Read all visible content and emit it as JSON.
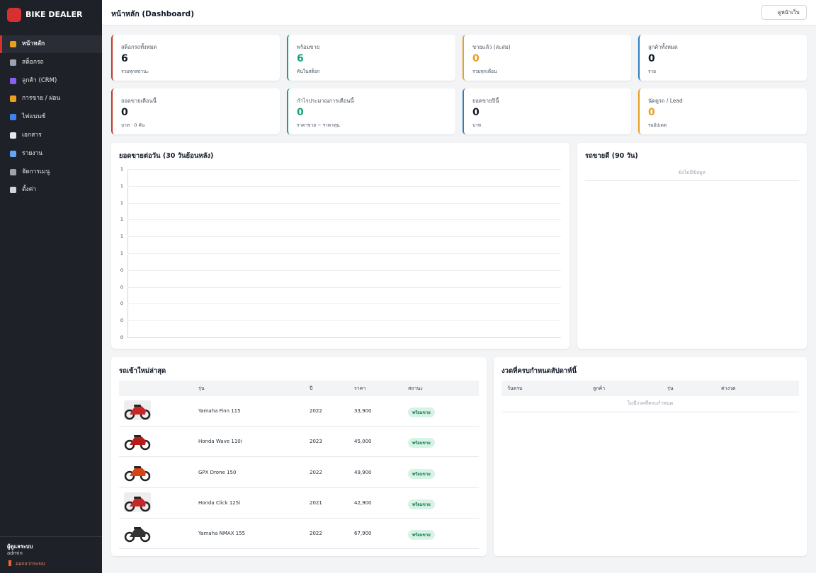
{
  "sidebar": {
    "brand": "BIKE DEALER",
    "nav": [
      "หน้าหลัก",
      "สต็อกรถ",
      "ลูกค้า (CRM)",
      "การขาย / ผ่อน",
      "ไฟแนนซ์",
      "เอกสาร",
      "รายงาน",
      "จัดการเมนู",
      "ตั้งค่า"
    ],
    "active": 0,
    "user": {
      "role": "ผู้ดูแลระบบ",
      "name": "admin",
      "logout": "ออกจากระบบ"
    }
  },
  "header": {
    "title": "หน้าหลัก (Dashboard)",
    "button": "ดูหน้าเว็บ"
  },
  "stats": [
    {
      "label": "สต็อกรถทั้งหมด",
      "value": 6,
      "note": "รวมทุกสถานะ",
      "color": "#c0392b",
      "value_colored": false
    },
    {
      "label": "พร้อมขาย",
      "value": 6,
      "note": "คันในสต็อก",
      "color": "#16a37a",
      "value_colored": true
    },
    {
      "label": "ขายแล้ว (สะสม)",
      "value": 0,
      "note": "รวมทุกเดือน",
      "color": "#e8a020",
      "value_colored": true
    },
    {
      "label": "ลูกค้าทั้งหมด",
      "value": 0,
      "note": "ราย",
      "color": "#2d7fc1",
      "value_colored": false
    },
    {
      "label": "ยอดขายเดือนนี้",
      "value": 0,
      "note": "บาท · 0 คัน",
      "color": "#c0392b",
      "value_colored": false
    },
    {
      "label": "กำไรประมาณการเดือนนี้",
      "value": 0,
      "note": "ราคาขาย − ราคาทุน",
      "color": "#16a37a",
      "value_colored": true
    },
    {
      "label": "ยอดขายปีนี้",
      "value": 0,
      "note": "บาท",
      "color": "#2d7fc1",
      "value_colored": false
    },
    {
      "label": "นัดดูรถ / Lead",
      "value": 0,
      "note": "รออัปเดต",
      "color": "#e8a020",
      "value_colored": true
    }
  ],
  "sales_chart": {
    "title": "ยอดขายต่อวัน (30 วันย้อนหลัง)",
    "yticks": [
      "1",
      "1",
      "1",
      "1",
      "1",
      "1",
      "0",
      "0",
      "0",
      "0",
      "0"
    ]
  },
  "top_sellers": {
    "title": "รถขายดี (90 วัน)",
    "empty": "ยังไม่มีข้อมูล"
  },
  "new_arrivals": {
    "title": "รถเข้าใหม่ล่าสุด",
    "columns": [
      "รุ่น",
      "ปี",
      "ราคา",
      "สถานะ"
    ],
    "rows": [
      [
        "Yamaha Finn 115",
        "2022",
        "33,900",
        "พร้อมขาย"
      ],
      [
        "Honda Wave 110i",
        "2023",
        "45,000",
        "พร้อมขาย"
      ],
      [
        "GPX Drone 150",
        "2022",
        "49,900",
        "พร้อมขาย"
      ],
      [
        "Honda Click 125i",
        "2021",
        "42,900",
        "พร้อมขาย"
      ],
      [
        "Yamaha NMAX 155",
        "2022",
        "67,900",
        "พร้อมขาย"
      ]
    ]
  },
  "due_installments": {
    "title": "งวดที่ครบกำหนดสัปดาห์นี้",
    "columns": [
      "วันครบ",
      "ลูกค้า",
      "รุ่น",
      "ค่างวด"
    ],
    "empty": "ไม่มีงวดที่ครบกำหนด"
  }
}
